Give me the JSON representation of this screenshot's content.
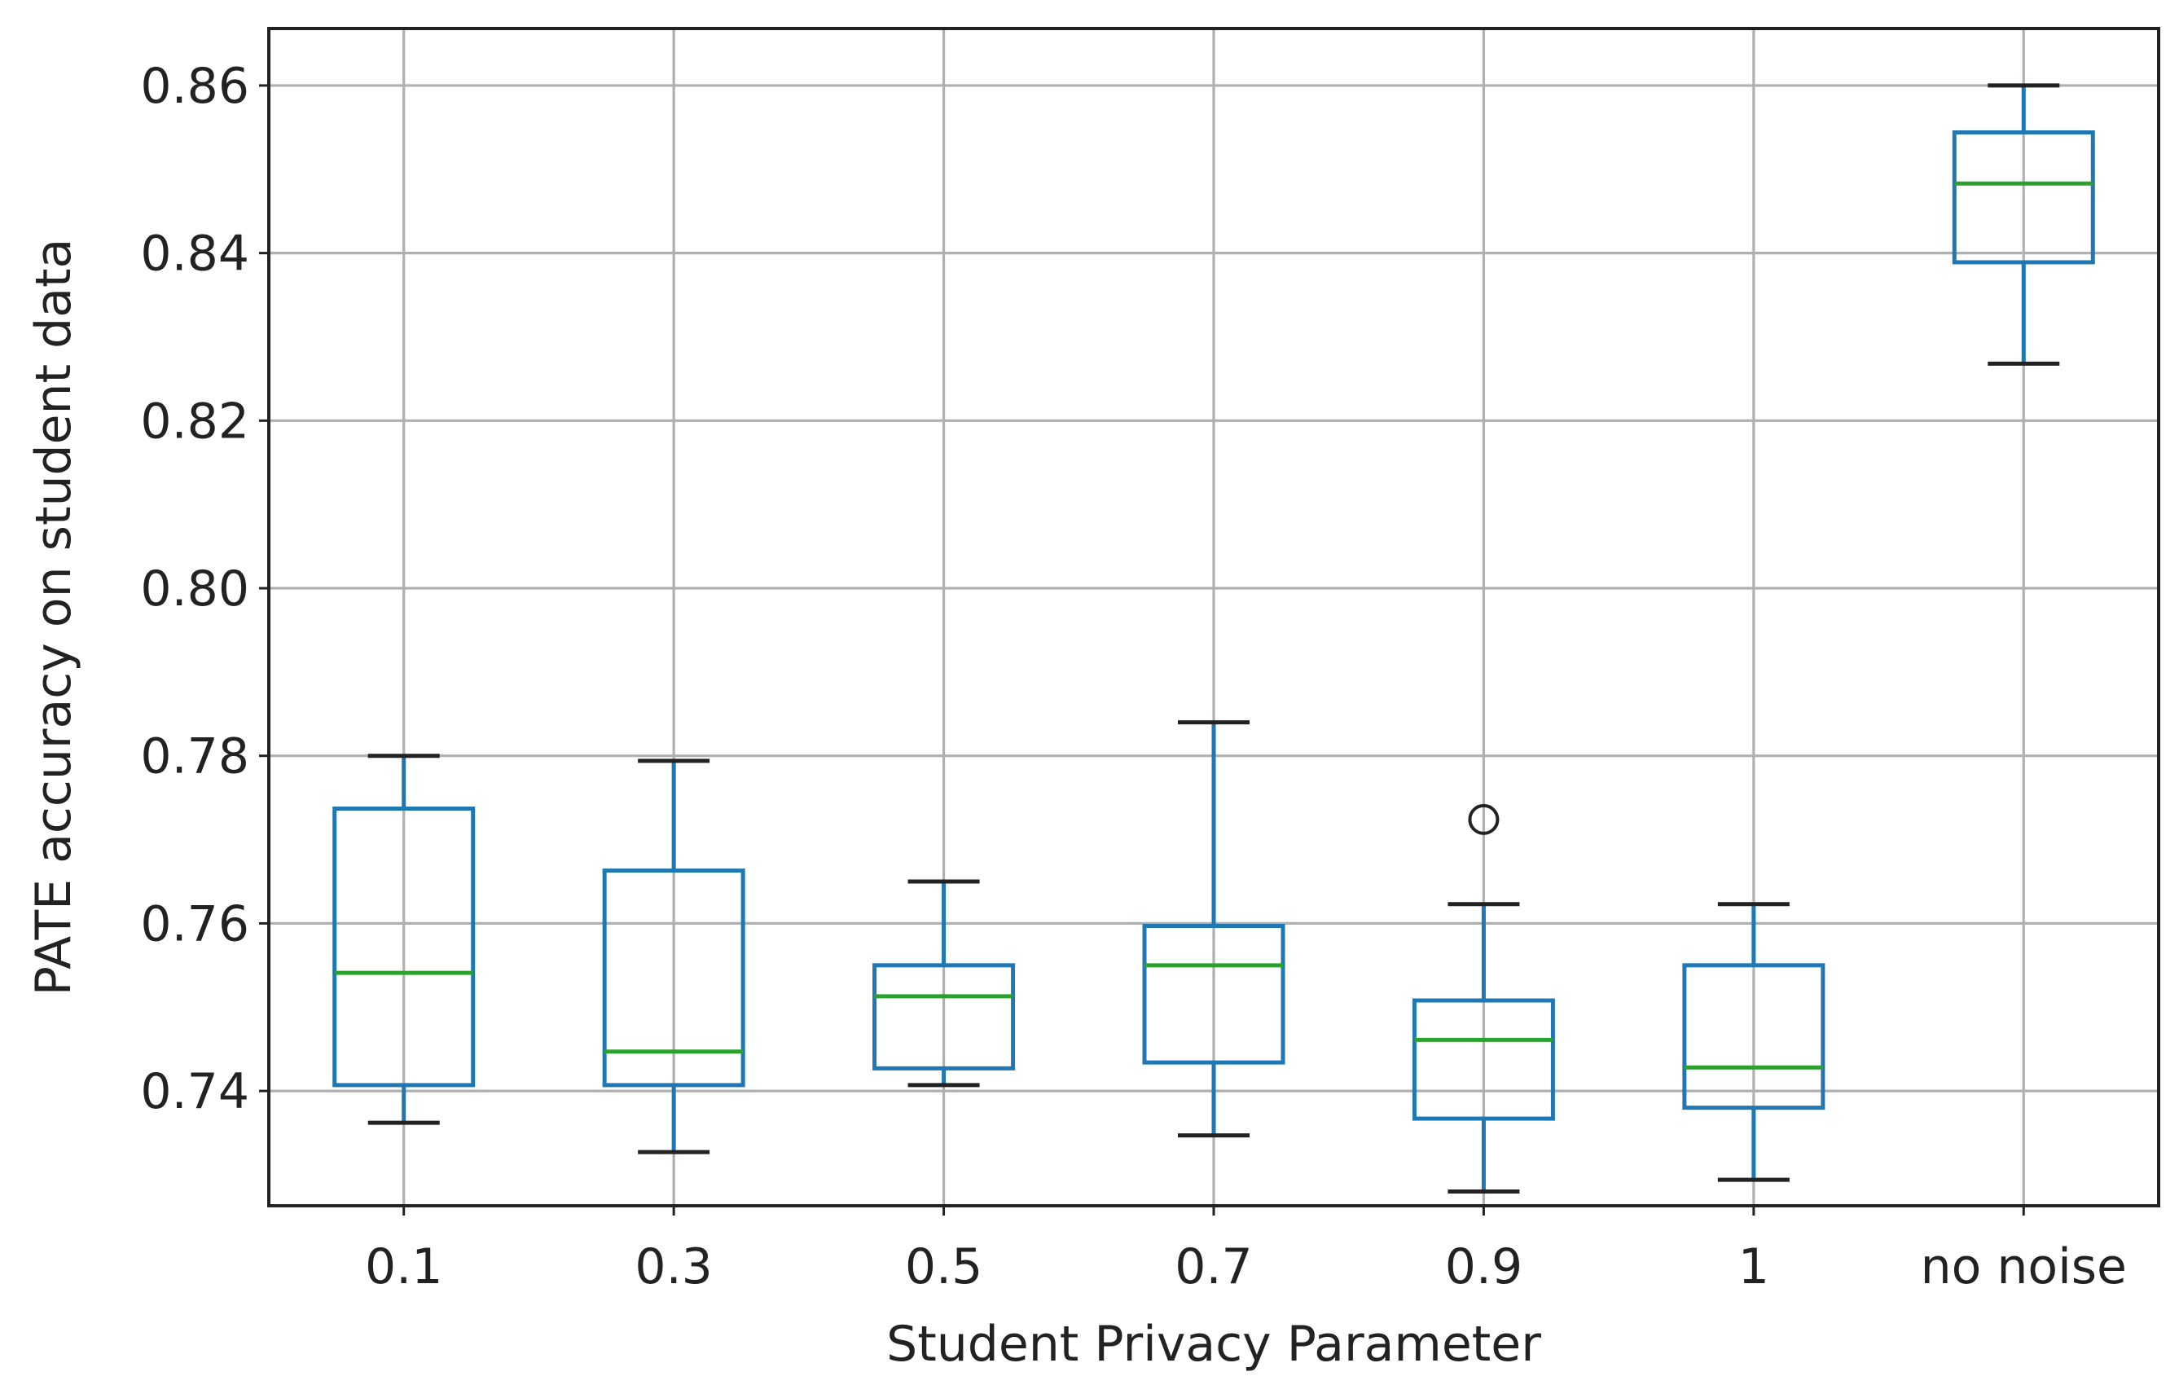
{
  "chart_data": {
    "type": "boxplot",
    "title": "",
    "xlabel": "Student Privacy Parameter",
    "ylabel": "PATE accuracy on student data",
    "categories": [
      "0.1",
      "0.3",
      "0.5",
      "0.7",
      "0.9",
      "1",
      "no noise"
    ],
    "ylim": [
      0.7263,
      0.8668
    ],
    "yticks": [
      0.74,
      0.76,
      0.78,
      0.8,
      0.82,
      0.84,
      0.86
    ],
    "ytick_labels": [
      "0.74",
      "0.76",
      "0.78",
      "0.80",
      "0.82",
      "0.84",
      "0.86"
    ],
    "grid": true,
    "colors": {
      "box": "#1f77b4",
      "median": "#2ca02c",
      "cap": "#222222",
      "outlier": "#222222",
      "grid": "#b0b0b0",
      "frame": "#222222"
    },
    "boxes": [
      {
        "label": "0.1",
        "whislo": 0.7362,
        "q1": 0.7407,
        "med": 0.7541,
        "q3": 0.7737,
        "whishi": 0.78,
        "fliers": []
      },
      {
        "label": "0.3",
        "whislo": 0.7327,
        "q1": 0.7407,
        "med": 0.7447,
        "q3": 0.7663,
        "whishi": 0.7794,
        "fliers": []
      },
      {
        "label": "0.5",
        "whislo": 0.7407,
        "q1": 0.7427,
        "med": 0.7513,
        "q3": 0.755,
        "whishi": 0.765,
        "fliers": []
      },
      {
        "label": "0.7",
        "whislo": 0.7347,
        "q1": 0.7434,
        "med": 0.755,
        "q3": 0.7597,
        "whishi": 0.784,
        "fliers": []
      },
      {
        "label": "0.9",
        "whislo": 0.728,
        "q1": 0.7367,
        "med": 0.7461,
        "q3": 0.7508,
        "whishi": 0.7623,
        "fliers": [
          0.7724
        ]
      },
      {
        "label": "1",
        "whislo": 0.7294,
        "q1": 0.738,
        "med": 0.7428,
        "q3": 0.755,
        "whishi": 0.7623,
        "fliers": []
      },
      {
        "label": "no noise",
        "whislo": 0.8268,
        "q1": 0.8389,
        "med": 0.8483,
        "q3": 0.8544,
        "whishi": 0.86,
        "fliers": []
      }
    ]
  }
}
